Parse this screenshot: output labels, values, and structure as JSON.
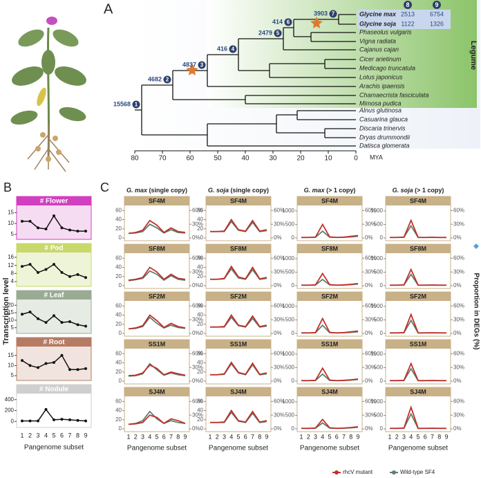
{
  "panel_a": {
    "label": "A",
    "nodes": [
      {
        "id": 1,
        "count": 15568
      },
      {
        "id": 2,
        "count": 4682
      },
      {
        "id": 3,
        "count": 4837
      },
      {
        "id": 4,
        "count": 416
      },
      {
        "id": 5,
        "count": 2479
      },
      {
        "id": 6,
        "count": 414
      },
      {
        "id": 7,
        "count": 3903
      }
    ],
    "taxa": [
      "Glycine max",
      "Glycine soja",
      "Phaseolus vulgaris",
      "Vigna radiata",
      "Cajanus cajan",
      "Cicer arietinum",
      "Medicago truncatula",
      "Lotus japonicus",
      "Arachis ipaensis",
      "Chamaecrista fasciculata",
      "Mimosa pudica",
      "Alnus glutinosa",
      "Casuarina glauca",
      "Discaria trinervis",
      "Dryas drummondii",
      "Datisca glomerata"
    ],
    "table": {
      "headers": [
        8,
        9
      ],
      "rows": [
        [
          2513,
          6754
        ],
        [
          1122,
          1326
        ]
      ]
    },
    "clade_label": "Legume",
    "axis": {
      "label": "MYA",
      "xlim": [
        80,
        0
      ],
      "xticks": [
        80,
        70,
        60,
        50,
        40,
        30,
        20,
        10,
        0
      ]
    }
  },
  "panel_b": {
    "label": "B",
    "ylabel": "Transcription level",
    "xlabel": "Pangenome subset",
    "subsets": [
      1,
      2,
      3,
      4,
      5,
      6,
      7,
      8,
      9
    ],
    "tissues": [
      {
        "name": "# Flower",
        "color": "#d23fc0",
        "ylim": [
          4,
          17
        ],
        "yticks": [
          5,
          10,
          15
        ],
        "values": [
          11,
          11,
          8,
          7.5,
          13.5,
          8,
          7,
          6.5,
          6.5
        ]
      },
      {
        "name": "# Pod",
        "color": "#c9d86a",
        "ylim": [
          3,
          17
        ],
        "yticks": [
          4,
          8,
          12,
          16
        ],
        "values": [
          11.5,
          12.5,
          8.5,
          10,
          12.5,
          8.5,
          6.5,
          7.5,
          6
        ]
      },
      {
        "name": "# Leaf",
        "color": "#9aab94",
        "ylim": [
          3,
          22
        ],
        "yticks": [
          5,
          10,
          15,
          20
        ],
        "values": [
          14,
          15.5,
          11,
          8.5,
          13,
          8.5,
          9,
          7,
          6
        ]
      },
      {
        "name": "# Root",
        "color": "#b57b63",
        "ylim": [
          4,
          18
        ],
        "yticks": [
          5,
          10,
          15
        ],
        "values": [
          12.5,
          10,
          9,
          11,
          11.5,
          15,
          8,
          8,
          8.5
        ]
      },
      {
        "name": "# Nodule",
        "color": "#cfcfcf",
        "ylim": [
          -60,
          460
        ],
        "yticks": [
          0,
          200,
          400
        ],
        "values": [
          10,
          10,
          10,
          220,
          30,
          40,
          30,
          20,
          10
        ]
      }
    ]
  },
  "panel_c": {
    "label": "C",
    "xlabel": "Pangenome subset",
    "subsets": [
      1,
      2,
      3,
      4,
      5,
      6,
      7,
      8,
      9
    ],
    "y2label": "Proportion in DEGs (%)",
    "y2ticks": [
      {
        "value": 0,
        "label": "0%"
      },
      {
        "value": 30,
        "label": "30%"
      },
      {
        "value": 60,
        "label": "60%"
      }
    ],
    "y2lim": [
      0,
      65
    ],
    "mutant_color": "#c0302a",
    "wildtype_color": "#5f7d6c",
    "legend": [
      "rhcV mutant",
      "Wild-type SF4"
    ],
    "columns": [
      {
        "species": "G. max",
        "copy": "(single copy)",
        "ylim": [
          0,
          65
        ],
        "yticks": [
          0,
          20,
          40,
          60
        ],
        "rows": [
          {
            "name": "SF4M",
            "mutant": [
              10,
              12,
              17,
              38,
              28,
              12,
              22,
              14,
              12
            ],
            "wildtype": [
              10,
              11,
              14,
              30,
              22,
              11,
              18,
              12,
              11
            ]
          },
          {
            "name": "SF8M",
            "mutant": [
              12,
              14,
              18,
              40,
              30,
              14,
              25,
              16,
              14
            ],
            "wildtype": [
              11,
              13,
              16,
              32,
              25,
              12,
              22,
              14,
              12
            ]
          },
          {
            "name": "SF2M",
            "mutant": [
              10,
              12,
              17,
              40,
              28,
              13,
              22,
              15,
              12
            ],
            "wildtype": [
              10,
              11,
              15,
              35,
              22,
              12,
              18,
              13,
              11
            ]
          },
          {
            "name": "SS1M",
            "mutant": [
              12,
              13,
              18,
              35,
              28,
              14,
              20,
              16,
              13
            ],
            "wildtype": [
              11,
              12,
              16,
              38,
              25,
              13,
              18,
              14,
              12
            ]
          },
          {
            "name": "SJ4M",
            "mutant": [
              10,
              11,
              14,
              30,
              25,
              12,
              22,
              18,
              12
            ],
            "wildtype": [
              10,
              12,
              18,
              38,
              22,
              12,
              18,
              14,
              12
            ]
          }
        ]
      },
      {
        "species": "G. soja",
        "copy": "(single copy)",
        "ylim": [
          0,
          65
        ],
        "yticks": [
          0,
          20,
          40,
          60
        ],
        "rows": [
          {
            "name": "SF4M",
            "mutant": [
              14,
              14,
              15,
              40,
              18,
              15,
              38,
              15,
              18
            ],
            "wildtype": [
              14,
              14,
              14,
              36,
              17,
              14,
              34,
              14,
              16
            ]
          },
          {
            "name": "SF8M",
            "mutant": [
              14,
              14,
              16,
              42,
              19,
              15,
              40,
              15,
              18
            ],
            "wildtype": [
              14,
              14,
              15,
              37,
              17,
              14,
              35,
              14,
              16
            ]
          },
          {
            "name": "SF2M",
            "mutant": [
              14,
              14,
              15,
              40,
              18,
              15,
              38,
              15,
              18
            ],
            "wildtype": [
              14,
              14,
              14,
              35,
              17,
              14,
              33,
              14,
              16
            ]
          },
          {
            "name": "SS1M",
            "mutant": [
              14,
              14,
              16,
              41,
              19,
              15,
              39,
              15,
              18
            ],
            "wildtype": [
              14,
              14,
              15,
              38,
              18,
              14,
              36,
              14,
              16
            ]
          },
          {
            "name": "SJ4M",
            "mutant": [
              14,
              14,
              15,
              40,
              18,
              15,
              38,
              15,
              18
            ],
            "wildtype": [
              14,
              14,
              14,
              36,
              17,
              14,
              34,
              14,
              16
            ]
          }
        ]
      },
      {
        "species": "G. max",
        "copy": "(> 1 copy)",
        "ylim": [
          0,
          1100
        ],
        "yticks": [
          0,
          500,
          1000
        ],
        "rows": [
          {
            "name": "SF4M",
            "mutant": [
              20,
              20,
              30,
              500,
              40,
              20,
              30,
              60,
              90
            ],
            "wildtype": [
              20,
              20,
              25,
              250,
              30,
              20,
              25,
              40,
              60
            ]
          },
          {
            "name": "SF8M",
            "mutant": [
              20,
              20,
              30,
              450,
              40,
              20,
              30,
              50,
              80
            ],
            "wildtype": [
              20,
              20,
              25,
              230,
              30,
              20,
              25,
              40,
              60
            ]
          },
          {
            "name": "SF2M",
            "mutant": [
              20,
              20,
              30,
              550,
              40,
              20,
              30,
              60,
              90
            ],
            "wildtype": [
              20,
              20,
              25,
              300,
              30,
              20,
              25,
              40,
              60
            ]
          },
          {
            "name": "SS1M",
            "mutant": [
              20,
              20,
              30,
              480,
              40,
              20,
              30,
              50,
              80
            ],
            "wildtype": [
              20,
              20,
              25,
              260,
              30,
              20,
              25,
              40,
              60
            ]
          },
          {
            "name": "SJ4M",
            "mutant": [
              20,
              20,
              30,
              350,
              40,
              20,
              30,
              50,
              80
            ],
            "wildtype": [
              20,
              20,
              25,
              220,
              30,
              20,
              25,
              40,
              60
            ]
          }
        ]
      },
      {
        "species": "G. soja",
        "copy": "(> 1 copy)",
        "ylim": [
          0,
          1100
        ],
        "yticks": [
          0,
          500,
          1000
        ],
        "rows": [
          {
            "name": "SF4M",
            "mutant": [
              20,
              20,
              30,
              650,
              20,
              20,
              25,
              20,
              20
            ],
            "wildtype": [
              20,
              20,
              25,
              450,
              20,
              20,
              20,
              20,
              20
            ]
          },
          {
            "name": "SF8M",
            "mutant": [
              20,
              20,
              30,
              600,
              20,
              20,
              25,
              20,
              20
            ],
            "wildtype": [
              20,
              20,
              25,
              420,
              20,
              20,
              20,
              20,
              20
            ]
          },
          {
            "name": "SF2M",
            "mutant": [
              20,
              20,
              30,
              700,
              20,
              20,
              25,
              20,
              20
            ],
            "wildtype": [
              20,
              20,
              25,
              480,
              20,
              20,
              20,
              20,
              20
            ]
          },
          {
            "name": "SS1M",
            "mutant": [
              20,
              20,
              30,
              650,
              20,
              20,
              25,
              20,
              20
            ],
            "wildtype": [
              20,
              20,
              25,
              460,
              20,
              20,
              20,
              20,
              20
            ]
          },
          {
            "name": "SJ4M",
            "mutant": [
              20,
              20,
              30,
              800,
              20,
              20,
              25,
              20,
              20
            ],
            "wildtype": [
              20,
              20,
              25,
              550,
              20,
              20,
              20,
              20,
              20
            ]
          }
        ]
      }
    ]
  }
}
